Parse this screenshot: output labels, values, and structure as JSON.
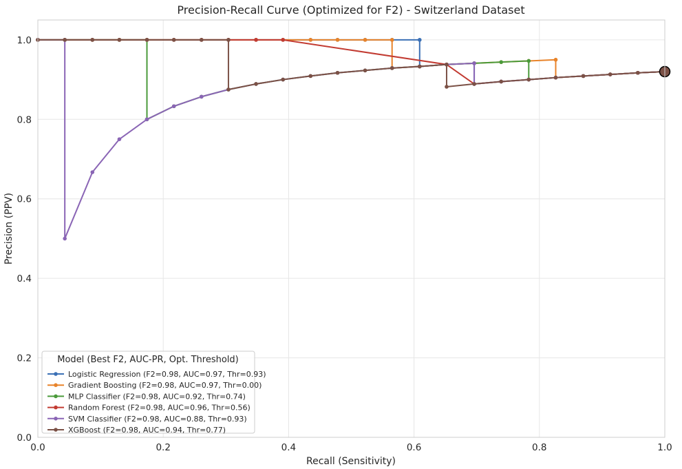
{
  "chart_data": {
    "type": "line",
    "title": "Precision-Recall Curve (Optimized for F2) - Switzerland Dataset",
    "xlabel": "Recall (Sensitivity)",
    "ylabel": "Precision (PPV)",
    "xlim": [
      0,
      1
    ],
    "ylim": [
      0,
      1.05
    ],
    "xticks": [
      "0.0",
      "0.2",
      "0.4",
      "0.6",
      "0.8",
      "1.0"
    ],
    "yticks": [
      "0.0",
      "0.2",
      "0.4",
      "0.6",
      "0.8",
      "1.0"
    ],
    "grid": true,
    "legend": {
      "title": "Model (Best F2, AUC-PR, Opt. Threshold)",
      "placement": "lower-left"
    },
    "series": [
      {
        "name": "Logistic Regression (F2=0.98, AUC=0.97, Thr=0.93)",
        "color": "#3b70b5",
        "points": [
          [
            0,
            1
          ],
          [
            0.043,
            1
          ],
          [
            0.087,
            1
          ],
          [
            0.13,
            1
          ],
          [
            0.174,
            1
          ],
          [
            0.217,
            1
          ],
          [
            0.261,
            1
          ],
          [
            0.304,
            1
          ],
          [
            0.348,
            1
          ],
          [
            0.391,
            1
          ],
          [
            0.435,
            1
          ],
          [
            0.478,
            1
          ],
          [
            0.522,
            1
          ],
          [
            0.565,
            1
          ],
          [
            0.609,
            1
          ],
          [
            0.609,
            0.933
          ],
          [
            0.652,
            0.938
          ],
          [
            0.696,
            0.941
          ],
          [
            0.696,
            0.889
          ],
          [
            0.739,
            0.895
          ],
          [
            0.783,
            0.9
          ],
          [
            0.826,
            0.905
          ],
          [
            0.87,
            0.909
          ],
          [
            0.913,
            0.913
          ],
          [
            0.957,
            0.917
          ],
          [
            1.0,
            0.92
          ]
        ]
      },
      {
        "name": "Gradient Boosting (F2=0.98, AUC=0.97, Thr=0.00)",
        "color": "#e8832a",
        "points": [
          [
            0,
            1
          ],
          [
            0.043,
            1
          ],
          [
            0.087,
            1
          ],
          [
            0.13,
            1
          ],
          [
            0.174,
            1
          ],
          [
            0.217,
            1
          ],
          [
            0.261,
            1
          ],
          [
            0.304,
            1
          ],
          [
            0.348,
            1
          ],
          [
            0.391,
            1
          ],
          [
            0.435,
            1
          ],
          [
            0.478,
            1
          ],
          [
            0.522,
            1
          ],
          [
            0.565,
            1
          ],
          [
            0.565,
            0.929
          ],
          [
            0.609,
            0.933
          ],
          [
            0.652,
            0.938
          ],
          [
            0.696,
            0.941
          ],
          [
            0.739,
            0.944
          ],
          [
            0.783,
            0.947
          ],
          [
            0.826,
            0.95
          ],
          [
            0.826,
            0.905
          ],
          [
            0.87,
            0.909
          ],
          [
            0.913,
            0.913
          ],
          [
            0.957,
            0.917
          ],
          [
            1.0,
            0.92
          ]
        ]
      },
      {
        "name": "MLP Classifier (F2=0.98, AUC=0.92, Thr=0.74)",
        "color": "#4a9a3a",
        "points": [
          [
            0,
            1
          ],
          [
            0.043,
            1
          ],
          [
            0.087,
            1
          ],
          [
            0.13,
            1
          ],
          [
            0.174,
            1
          ],
          [
            0.174,
            0.8
          ],
          [
            0.217,
            0.833
          ],
          [
            0.261,
            0.857
          ],
          [
            0.304,
            0.875
          ],
          [
            0.348,
            0.889
          ],
          [
            0.391,
            0.9
          ],
          [
            0.435,
            0.909
          ],
          [
            0.478,
            0.917
          ],
          [
            0.522,
            0.923
          ],
          [
            0.565,
            0.929
          ],
          [
            0.609,
            0.933
          ],
          [
            0.652,
            0.938
          ],
          [
            0.696,
            0.941
          ],
          [
            0.739,
            0.944
          ],
          [
            0.783,
            0.947
          ],
          [
            0.783,
            0.9
          ],
          [
            0.826,
            0.905
          ],
          [
            0.87,
            0.909
          ],
          [
            0.913,
            0.913
          ],
          [
            0.957,
            0.917
          ],
          [
            1.0,
            0.92
          ]
        ]
      },
      {
        "name": "Random Forest (F2=0.98, AUC=0.96, Thr=0.56)",
        "color": "#c23b32",
        "points": [
          [
            0,
            1
          ],
          [
            0.043,
            1
          ],
          [
            0.087,
            1
          ],
          [
            0.13,
            1
          ],
          [
            0.174,
            1
          ],
          [
            0.217,
            1
          ],
          [
            0.261,
            1
          ],
          [
            0.304,
            1
          ],
          [
            0.348,
            1
          ],
          [
            0.391,
            1
          ],
          [
            0.652,
            0.938
          ],
          [
            0.696,
            0.889
          ],
          [
            0.739,
            0.895
          ],
          [
            0.783,
            0.9
          ],
          [
            0.826,
            0.905
          ],
          [
            0.87,
            0.909
          ],
          [
            0.913,
            0.913
          ],
          [
            0.957,
            0.917
          ],
          [
            1.0,
            0.92
          ]
        ]
      },
      {
        "name": "SVM Classifier (F2=0.98, AUC=0.88, Thr=0.93)",
        "color": "#8a65b5",
        "points": [
          [
            0,
            1
          ],
          [
            0.043,
            1
          ],
          [
            0.043,
            0.5
          ],
          [
            0.087,
            0.667
          ],
          [
            0.13,
            0.75
          ],
          [
            0.174,
            0.8
          ],
          [
            0.217,
            0.833
          ],
          [
            0.261,
            0.857
          ],
          [
            0.304,
            0.875
          ],
          [
            0.348,
            0.889
          ],
          [
            0.391,
            0.9
          ],
          [
            0.435,
            0.909
          ],
          [
            0.478,
            0.917
          ],
          [
            0.522,
            0.923
          ],
          [
            0.565,
            0.929
          ],
          [
            0.609,
            0.933
          ],
          [
            0.652,
            0.938
          ],
          [
            0.696,
            0.941
          ],
          [
            0.696,
            0.889
          ],
          [
            0.739,
            0.895
          ],
          [
            0.783,
            0.9
          ],
          [
            0.826,
            0.905
          ],
          [
            0.87,
            0.909
          ],
          [
            0.913,
            0.913
          ],
          [
            0.957,
            0.917
          ],
          [
            1.0,
            0.92
          ]
        ]
      },
      {
        "name": "XGBoost (F2=0.98, AUC=0.94, Thr=0.77)",
        "color": "#7b5146",
        "points": [
          [
            0,
            1
          ],
          [
            0.043,
            1
          ],
          [
            0.087,
            1
          ],
          [
            0.13,
            1
          ],
          [
            0.174,
            1
          ],
          [
            0.217,
            1
          ],
          [
            0.261,
            1
          ],
          [
            0.304,
            1
          ],
          [
            0.304,
            0.875
          ],
          [
            0.348,
            0.889
          ],
          [
            0.391,
            0.9
          ],
          [
            0.435,
            0.909
          ],
          [
            0.478,
            0.917
          ],
          [
            0.522,
            0.923
          ],
          [
            0.565,
            0.929
          ],
          [
            0.609,
            0.933
          ],
          [
            0.652,
            0.938
          ],
          [
            0.652,
            0.882
          ],
          [
            0.696,
            0.889
          ],
          [
            0.739,
            0.895
          ],
          [
            0.783,
            0.9
          ],
          [
            0.826,
            0.905
          ],
          [
            0.87,
            0.909
          ],
          [
            0.913,
            0.913
          ],
          [
            0.957,
            0.917
          ],
          [
            1.0,
            0.92
          ]
        ]
      }
    ],
    "optimal_marker": {
      "recall": 1.0,
      "precision": 0.92,
      "color": "#7b5146"
    }
  }
}
